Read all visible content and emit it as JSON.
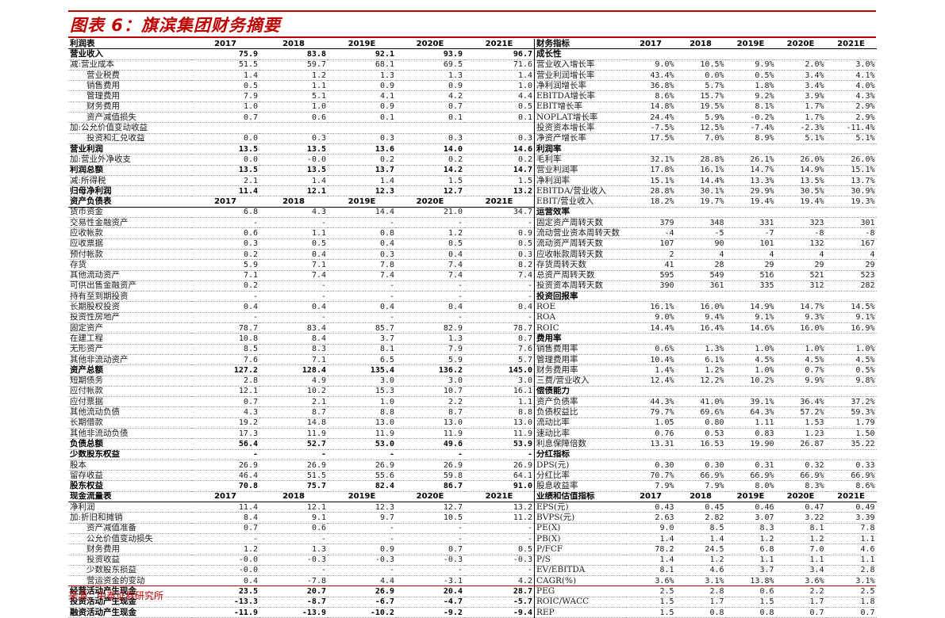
{
  "title": "图表 6：旗滨集团财务摘要",
  "source": "来源：中泰证券研究所",
  "left_table": [
    {
      "b": 1,
      "h": 1,
      "c": [
        "利润表",
        "2017",
        "2018",
        "2019E",
        "2020E",
        "2021E"
      ]
    },
    {
      "b": 1,
      "c": [
        "营业收入",
        "75.9",
        "83.8",
        "92.1",
        "93.9",
        "96.7"
      ]
    },
    {
      "c": [
        "减:营业成本",
        "51.5",
        "59.7",
        "68.1",
        "69.5",
        "71.6"
      ]
    },
    {
      "c": [
        "　　营业税费",
        "1.4",
        "1.2",
        "1.3",
        "1.3",
        "1.4"
      ]
    },
    {
      "c": [
        "　　销售费用",
        "0.5",
        "1.1",
        "0.9",
        "0.9",
        "1.0"
      ]
    },
    {
      "c": [
        "　　管理费用",
        "7.9",
        "5.1",
        "4.1",
        "4.2",
        "4.4"
      ]
    },
    {
      "c": [
        "　　财务费用",
        "1.0",
        "1.0",
        "0.9",
        "0.7",
        "0.5"
      ]
    },
    {
      "c": [
        "　　资产减值损失",
        "0.7",
        "0.6",
        "0.1",
        "0.1",
        "0.1"
      ]
    },
    {
      "c": [
        "加:公允价值变动收益",
        "",
        "",
        "",
        "",
        ""
      ]
    },
    {
      "c": [
        "　　投资和汇兑收益",
        "0.0",
        "0.3",
        "0.3",
        "0.3",
        "0.3"
      ]
    },
    {
      "b": 1,
      "c": [
        "营业利润",
        "13.5",
        "13.5",
        "13.6",
        "14.0",
        "14.6"
      ]
    },
    {
      "c": [
        "加:营业外净收支",
        "0.0",
        "-0.0",
        "0.2",
        "0.2",
        "0.2"
      ]
    },
    {
      "b": 1,
      "c": [
        "利润总额",
        "13.5",
        "13.5",
        "13.7",
        "14.2",
        "14.7"
      ]
    },
    {
      "c": [
        "减:所得税",
        "2.1",
        "1.4",
        "1.4",
        "1.5",
        "1.5"
      ]
    },
    {
      "b": 1,
      "c": [
        "归母净利润",
        "11.4",
        "12.1",
        "12.3",
        "12.7",
        "13.2"
      ]
    },
    {
      "b": 1,
      "h": 1,
      "c": [
        "资产负债表",
        "2017",
        "2018",
        "2019E",
        "2020E",
        "2021E"
      ]
    },
    {
      "c": [
        "货币资金",
        "6.8",
        "4.3",
        "14.4",
        "21.0",
        "34.7"
      ]
    },
    {
      "c": [
        "交易性金融资产",
        "-",
        "-",
        "-",
        "-",
        "-"
      ]
    },
    {
      "c": [
        "应收帐款",
        "0.6",
        "1.1",
        "0.8",
        "1.2",
        "0.9"
      ]
    },
    {
      "c": [
        "应收票据",
        "0.3",
        "0.5",
        "0.4",
        "0.5",
        "0.5"
      ]
    },
    {
      "c": [
        "预付帐款",
        "0.2",
        "0.4",
        "0.3",
        "0.4",
        "0.3"
      ]
    },
    {
      "c": [
        "存货",
        "5.9",
        "7.1",
        "7.8",
        "7.4",
        "8.2"
      ]
    },
    {
      "c": [
        "其他流动资产",
        "7.1",
        "7.4",
        "7.4",
        "7.4",
        "7.4"
      ]
    },
    {
      "c": [
        "可供出售金融资产",
        "0.2",
        "-",
        "-",
        "-",
        "-"
      ]
    },
    {
      "c": [
        "持有至到期投资",
        "-",
        "-",
        "-",
        "-",
        "-"
      ]
    },
    {
      "c": [
        "长期股权投资",
        "0.4",
        "0.4",
        "0.4",
        "0.4",
        "0.4"
      ]
    },
    {
      "c": [
        "投资性房地产",
        "-",
        "-",
        "-",
        "-",
        "-"
      ]
    },
    {
      "c": [
        "固定资产",
        "78.7",
        "83.4",
        "85.7",
        "82.9",
        "78.7"
      ]
    },
    {
      "c": [
        "在建工程",
        "10.8",
        "8.4",
        "3.7",
        "1.3",
        "0.7"
      ]
    },
    {
      "c": [
        "无形资产",
        "8.5",
        "8.3",
        "8.1",
        "7.9",
        "7.6"
      ]
    },
    {
      "c": [
        "其他非流动资产",
        "7.6",
        "7.1",
        "6.5",
        "5.9",
        "5.7"
      ]
    },
    {
      "b": 1,
      "c": [
        "资产总额",
        "127.2",
        "128.4",
        "135.4",
        "136.2",
        "145.0"
      ]
    },
    {
      "c": [
        "短期债务",
        "2.8",
        "4.9",
        "3.0",
        "3.0",
        "3.0"
      ]
    },
    {
      "c": [
        "应付帐款",
        "12.1",
        "10.2",
        "15.3",
        "10.7",
        "16.1"
      ]
    },
    {
      "c": [
        "应付票据",
        "0.7",
        "2.1",
        "1.0",
        "2.2",
        "1.1"
      ]
    },
    {
      "c": [
        "其他流动负债",
        "4.3",
        "8.7",
        "8.8",
        "8.7",
        "8.8"
      ]
    },
    {
      "c": [
        "长期借款",
        "19.2",
        "14.8",
        "13.0",
        "13.0",
        "13.0"
      ]
    },
    {
      "c": [
        "其他非流动负债",
        "17.3",
        "11.9",
        "11.9",
        "11.9",
        "11.9"
      ]
    },
    {
      "b": 1,
      "c": [
        "负债总额",
        "56.4",
        "52.7",
        "53.0",
        "49.6",
        "53.9"
      ]
    },
    {
      "b": 1,
      "c": [
        "少数股东权益",
        "-",
        "-",
        "-",
        "-",
        "-"
      ]
    },
    {
      "c": [
        "股本",
        "26.9",
        "26.9",
        "26.9",
        "26.9",
        "26.9"
      ]
    },
    {
      "c": [
        "留存收益",
        "46.4",
        "51.5",
        "55.6",
        "59.8",
        "64.1"
      ]
    },
    {
      "b": 1,
      "c": [
        "股东权益",
        "70.8",
        "75.7",
        "82.4",
        "86.7",
        "91.0"
      ]
    },
    {
      "b": 1,
      "h": 1,
      "c": [
        "现金流量表",
        "2017",
        "2018",
        "2019E",
        "2020E",
        "2021E"
      ]
    },
    {
      "c": [
        "净利润",
        "11.4",
        "12.1",
        "12.3",
        "12.7",
        "13.2"
      ]
    },
    {
      "c": [
        "加:折旧和摊销",
        "8.4",
        "9.1",
        "9.7",
        "10.5",
        "11.2"
      ]
    },
    {
      "c": [
        "　　资产减值准备",
        "0.7",
        "0.6",
        "-",
        "-",
        "-"
      ]
    },
    {
      "c": [
        "　　公允价值变动损失",
        "-",
        "-",
        "-",
        "-",
        "-"
      ]
    },
    {
      "c": [
        "　　财务费用",
        "1.2",
        "1.3",
        "0.9",
        "0.7",
        "0.5"
      ]
    },
    {
      "c": [
        "　　投资收益",
        "-0.0",
        "-0.3",
        "-0.3",
        "-0.3",
        "-0.3"
      ]
    },
    {
      "c": [
        "　　少数股东损益",
        "-0.0",
        "-",
        "-",
        "-",
        "-"
      ]
    },
    {
      "c": [
        "　　营运资金的变动",
        "0.4",
        "-7.8",
        "4.4",
        "-3.1",
        "4.2"
      ]
    },
    {
      "b": 1,
      "c": [
        "经营活动产生现金",
        "23.5",
        "20.7",
        "26.9",
        "20.4",
        "28.7"
      ]
    },
    {
      "b": 1,
      "c": [
        "投资活动产生现金",
        "-13.3",
        "-8.7",
        "-6.7",
        "-4.7",
        "-5.7"
      ]
    },
    {
      "b": 1,
      "c": [
        "融资活动产生现金",
        "-11.9",
        "-13.9",
        "-10.2",
        "-9.2",
        "-9.4"
      ]
    }
  ],
  "right_table": [
    {
      "b": 1,
      "h": 1,
      "c": [
        "财务指标",
        "2017",
        "2018",
        "2019E",
        "2020E",
        "2021E"
      ]
    },
    {
      "b": 1,
      "c": [
        "成长性",
        "",
        "",
        "",
        "",
        ""
      ]
    },
    {
      "c": [
        "营业收入增长率",
        "9.0%",
        "10.5%",
        "9.9%",
        "2.0%",
        "3.0%"
      ]
    },
    {
      "c": [
        "营业利润增长率",
        "43.4%",
        "0.0%",
        "0.5%",
        "3.4%",
        "4.1%"
      ]
    },
    {
      "c": [
        "净利润增长率",
        "36.8%",
        "5.7%",
        "1.8%",
        "3.4%",
        "4.0%"
      ]
    },
    {
      "c": [
        "EBITDA增长率",
        "8.6%",
        "15.7%",
        "9.2%",
        "3.9%",
        "4.3%"
      ]
    },
    {
      "c": [
        "EBIT增长率",
        "14.8%",
        "19.5%",
        "8.1%",
        "1.7%",
        "2.9%"
      ]
    },
    {
      "c": [
        "NOPLAT增长率",
        "24.4%",
        "5.9%",
        "-0.2%",
        "1.7%",
        "2.9%"
      ]
    },
    {
      "c": [
        "投资资本增长率",
        "-7.5%",
        "12.5%",
        "-7.4%",
        "-2.3%",
        "-11.4%"
      ]
    },
    {
      "c": [
        "净资产增长率",
        "17.5%",
        "7.0%",
        "8.9%",
        "5.1%",
        "5.1%"
      ]
    },
    {
      "b": 1,
      "c": [
        "利润率",
        "",
        "",
        "",
        "",
        ""
      ]
    },
    {
      "c": [
        "毛利率",
        "32.1%",
        "28.8%",
        "26.1%",
        "26.0%",
        "26.0%"
      ]
    },
    {
      "c": [
        "营业利润率",
        "17.8%",
        "16.1%",
        "14.7%",
        "14.9%",
        "15.1%"
      ]
    },
    {
      "c": [
        "净利润率",
        "15.1%",
        "14.4%",
        "13.3%",
        "13.5%",
        "13.7%"
      ]
    },
    {
      "c": [
        "EBITDA/营业收入",
        "28.8%",
        "30.1%",
        "29.9%",
        "30.5%",
        "30.9%"
      ]
    },
    {
      "c": [
        "EBIT/营业收入",
        "18.2%",
        "19.7%",
        "19.4%",
        "19.4%",
        "19.3%"
      ]
    },
    {
      "b": 1,
      "c": [
        "运营效率",
        "",
        "",
        "",
        "",
        ""
      ]
    },
    {
      "c": [
        "固定资产周转天数",
        "379",
        "348",
        "331",
        "323",
        "301"
      ]
    },
    {
      "c": [
        "流动营业资本周转天数",
        "-4",
        "-5",
        "-7",
        "-8",
        "-8"
      ]
    },
    {
      "c": [
        "流动资产周转天数",
        "107",
        "90",
        "101",
        "132",
        "167"
      ]
    },
    {
      "c": [
        "应收帐款周转天数",
        "2",
        "4",
        "4",
        "4",
        "4"
      ]
    },
    {
      "c": [
        "存货周转天数",
        "41",
        "28",
        "29",
        "29",
        "29"
      ]
    },
    {
      "c": [
        "总资产周转天数",
        "595",
        "549",
        "516",
        "521",
        "523"
      ]
    },
    {
      "c": [
        "投资资本周转天数",
        "390",
        "361",
        "335",
        "312",
        "282"
      ]
    },
    {
      "b": 1,
      "c": [
        "投资回报率",
        "",
        "",
        "",
        "",
        ""
      ]
    },
    {
      "c": [
        "ROE",
        "16.1%",
        "16.0%",
        "14.9%",
        "14.7%",
        "14.5%"
      ]
    },
    {
      "c": [
        "ROA",
        "9.0%",
        "9.4%",
        "9.1%",
        "9.3%",
        "9.1%"
      ]
    },
    {
      "c": [
        "ROIC",
        "14.4%",
        "16.4%",
        "14.6%",
        "16.0%",
        "16.9%"
      ]
    },
    {
      "b": 1,
      "c": [
        "费用率",
        "",
        "",
        "",
        "",
        ""
      ]
    },
    {
      "c": [
        "销售费用率",
        "0.6%",
        "1.3%",
        "1.0%",
        "1.0%",
        "1.0%"
      ]
    },
    {
      "c": [
        "管理费用率",
        "10.4%",
        "6.1%",
        "4.5%",
        "4.5%",
        "4.5%"
      ]
    },
    {
      "c": [
        "财务费用率",
        "1.4%",
        "1.2%",
        "1.0%",
        "0.7%",
        "0.5%"
      ]
    },
    {
      "c": [
        "三费/营业收入",
        "12.4%",
        "12.2%",
        "10.2%",
        "9.9%",
        "9.8%"
      ]
    },
    {
      "b": 1,
      "c": [
        "偿债能力",
        "",
        "",
        "",
        "",
        ""
      ]
    },
    {
      "c": [
        "资产负债率",
        "44.3%",
        "41.0%",
        "39.1%",
        "36.4%",
        "37.2%"
      ]
    },
    {
      "c": [
        "负债权益比",
        "79.7%",
        "69.6%",
        "64.3%",
        "57.2%",
        "59.3%"
      ]
    },
    {
      "c": [
        "流动比率",
        "1.05",
        "0.80",
        "1.11",
        "1.53",
        "1.79"
      ]
    },
    {
      "c": [
        "速动比率",
        "0.76",
        "0.53",
        "0.83",
        "1.23",
        "1.50"
      ]
    },
    {
      "c": [
        "利息保障倍数",
        "13.31",
        "16.53",
        "19.90",
        "26.87",
        "35.22"
      ]
    },
    {
      "b": 1,
      "c": [
        "分红指标",
        "",
        "",
        "",
        "",
        ""
      ]
    },
    {
      "c": [
        "DPS(元)",
        "0.30",
        "0.30",
        "0.31",
        "0.32",
        "0.33"
      ]
    },
    {
      "c": [
        "分红比率",
        "70.7%",
        "66.9%",
        "66.9%",
        "66.9%",
        "66.9%"
      ]
    },
    {
      "c": [
        "股息收益率",
        "7.9%",
        "7.9%",
        "8.0%",
        "8.3%",
        "8.6%"
      ]
    },
    {
      "b": 1,
      "h": 1,
      "c": [
        "业绩和估值指标",
        "2017",
        "2018",
        "2019E",
        "2020E",
        "2021E"
      ]
    },
    {
      "c": [
        "EPS(元)",
        "0.43",
        "0.45",
        "0.46",
        "0.47",
        "0.49"
      ]
    },
    {
      "c": [
        "BVPS(元)",
        "2.63",
        "2.82",
        "3.07",
        "3.22",
        "3.39"
      ]
    },
    {
      "c": [
        "PE(X)",
        "9.0",
        "8.5",
        "8.3",
        "8.1",
        "7.8"
      ]
    },
    {
      "c": [
        "PB(X)",
        "1.4",
        "1.4",
        "1.2",
        "1.2",
        "1.1"
      ]
    },
    {
      "c": [
        "P/FCF",
        "78.2",
        "24.5",
        "6.8",
        "7.0",
        "4.6"
      ]
    },
    {
      "c": [
        "P/S",
        "1.4",
        "1.2",
        "1.1",
        "1.1",
        "1.1"
      ]
    },
    {
      "c": [
        "EV/EBITDA",
        "8.1",
        "4.6",
        "3.7",
        "3.4",
        "2.8"
      ]
    },
    {
      "c": [
        "CAGR(%)",
        "3.6%",
        "3.1%",
        "13.8%",
        "3.6%",
        "3.1%"
      ]
    },
    {
      "c": [
        "PEG",
        "2.5",
        "2.8",
        "0.6",
        "2.2",
        "2.5"
      ]
    },
    {
      "c": [
        "ROIC/WACC",
        "1.5",
        "1.7",
        "1.5",
        "1.7",
        "1.8"
      ]
    },
    {
      "c": [
        "REP",
        "1.5",
        "0.8",
        "0.8",
        "0.7",
        "0.7"
      ]
    }
  ]
}
